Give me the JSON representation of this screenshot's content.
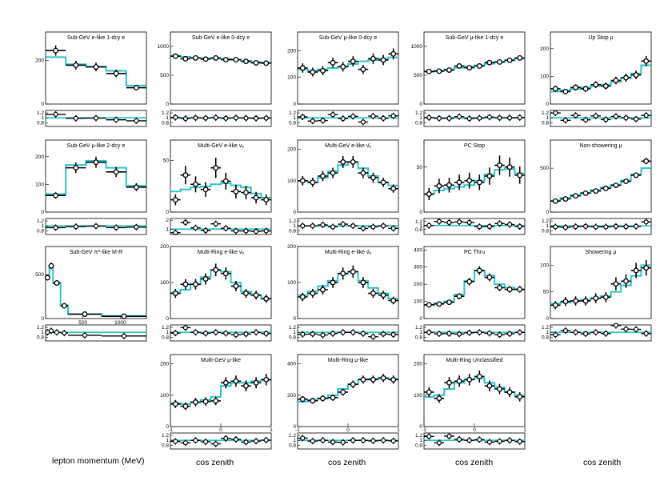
{
  "colors": {
    "mc": "#2ec4c4",
    "data": "#000000",
    "frame": "#000000"
  },
  "xlabels": [
    "lepton momentum (MeV)",
    "cos zenith",
    "cos zenith",
    "cos zenith",
    "cos zenith"
  ],
  "chart_data": [
    {
      "type": "line",
      "title": "Sub-GeV e-like 1-dcy e",
      "ylim": [
        0,
        330
      ],
      "xlim": [
        0,
        1
      ],
      "xticks": [],
      "yticks": [
        0,
        200
      ],
      "mc": [
        215,
        182,
        172,
        152,
        85
      ],
      "values": [
        245,
        178,
        170,
        140,
        75
      ],
      "ratio": {
        "ylim": [
          0.65,
          1.3
        ],
        "yticks": [
          0.8,
          1,
          1.2
        ],
        "values": [
          1.14,
          0.98,
          0.99,
          0.92,
          0.88
        ]
      }
    },
    {
      "type": "line",
      "title": "Sub-GeV e-like 0-dcy e",
      "ylim": [
        0,
        1250
      ],
      "xlim": [
        -1,
        1
      ],
      "xticks": [],
      "yticks": [
        0,
        500,
        1000
      ],
      "mc": [
        840,
        820,
        800,
        795,
        790,
        785,
        770,
        750,
        730,
        720
      ],
      "values": [
        830,
        785,
        800,
        780,
        800,
        770,
        770,
        740,
        715,
        710
      ],
      "ratio": {
        "ylim": [
          0.65,
          1.3
        ],
        "yticks": [
          0.8,
          1,
          1.2
        ],
        "values": [
          1.02,
          0.97,
          1.0,
          0.99,
          1.01,
          0.98,
          1.0,
          0.99,
          0.98,
          0.99
        ]
      }
    },
    {
      "type": "line",
      "title": "Sub-GeV μ-like 0-dcy e",
      "ylim": [
        0,
        270
      ],
      "xlim": [
        -1,
        1
      ],
      "xticks": [],
      "yticks": [
        0,
        100,
        200
      ],
      "mc": [
        130,
        125,
        130,
        135,
        140,
        150,
        160,
        165,
        170,
        175
      ],
      "values": [
        135,
        120,
        125,
        155,
        140,
        160,
        130,
        170,
        165,
        188
      ],
      "ratio": {
        "ylim": [
          0.65,
          1.3
        ],
        "yticks": [
          0.8,
          1,
          1.2
        ],
        "values": [
          1.04,
          0.87,
          0.89,
          1.13,
          0.97,
          1.06,
          0.83,
          1.07,
          0.98,
          1.08
        ]
      }
    },
    {
      "type": "line",
      "title": "Sub-GeV μ-like 1-dcy e",
      "ylim": [
        0,
        1250
      ],
      "xlim": [
        -1,
        1
      ],
      "xticks": [],
      "yticks": [
        0,
        500,
        1000
      ],
      "mc": [
        560,
        580,
        600,
        630,
        650,
        670,
        700,
        730,
        760,
        790
      ],
      "values": [
        565,
        570,
        590,
        660,
        630,
        660,
        720,
        730,
        760,
        800
      ],
      "ratio": {
        "ylim": [
          0.65,
          1.3
        ],
        "yticks": [
          0.8,
          1,
          1.2
        ],
        "values": [
          1.01,
          0.98,
          0.98,
          1.05,
          0.97,
          0.99,
          1.03,
          1.0,
          1.0,
          1.01
        ]
      }
    },
    {
      "type": "line",
      "title": "Up Stop μ",
      "ylim": [
        0,
        260
      ],
      "xlim": [
        -1,
        0
      ],
      "xticks": [],
      "yticks": [
        0,
        100,
        200
      ],
      "mc": [
        45,
        50,
        55,
        60,
        65,
        70,
        80,
        95,
        110,
        140
      ],
      "values": [
        55,
        45,
        60,
        55,
        70,
        65,
        85,
        95,
        105,
        155
      ],
      "ratio": {
        "ylim": [
          0.65,
          1.3
        ],
        "yticks": [
          0.8,
          1,
          1.2
        ],
        "values": [
          1.2,
          0.9,
          1.1,
          0.92,
          1.08,
          0.93,
          1.06,
          1.0,
          0.95,
          1.1
        ]
      }
    },
    {
      "type": "line",
      "title": "Sub-GeV μ-like 2-dcy e",
      "ylim": [
        0,
        260
      ],
      "xlim": [
        0,
        1
      ],
      "xticks": [],
      "yticks": [
        0,
        100,
        200
      ],
      "mc": [
        65,
        170,
        185,
        160,
        95
      ],
      "values": [
        60,
        160,
        180,
        145,
        90
      ],
      "ratio": {
        "ylim": [
          0.65,
          1.3
        ],
        "yticks": [
          0.8,
          1,
          1.2
        ],
        "values": [
          0.93,
          0.97,
          0.99,
          0.93,
          0.95
        ]
      }
    },
    {
      "type": "line",
      "title": "Multi-GeV e-like νₑ",
      "ylim": [
        0,
        70
      ],
      "xlim": [
        -1,
        1
      ],
      "xticks": [],
      "yticks": [
        0,
        50
      ],
      "mc": [
        20,
        22,
        24,
        25,
        27,
        28,
        26,
        24,
        18,
        14
      ],
      "values": [
        12,
        36,
        27,
        22,
        43,
        30,
        20,
        19,
        14,
        12
      ],
      "ratio": {
        "ylim": [
          0.4,
          2.2
        ],
        "yticks": [
          1,
          2
        ],
        "values": [
          0.6,
          1.75,
          1.15,
          0.85,
          1.6,
          1.1,
          0.8,
          0.8,
          0.75,
          0.8
        ]
      }
    },
    {
      "type": "line",
      "title": "Multi-GeV e-like ν̄ₑ",
      "ylim": [
        0,
        230
      ],
      "xlim": [
        -1,
        1
      ],
      "xticks": [],
      "yticks": [
        0,
        100,
        200
      ],
      "mc": [
        100,
        95,
        110,
        130,
        150,
        160,
        140,
        115,
        95,
        85
      ],
      "values": [
        100,
        95,
        115,
        125,
        160,
        160,
        125,
        110,
        95,
        75
      ],
      "ratio": {
        "ylim": [
          0.65,
          1.3
        ],
        "yticks": [
          0.8,
          1,
          1.2
        ],
        "values": [
          1.0,
          1.0,
          1.04,
          0.96,
          1.07,
          1.0,
          0.9,
          0.96,
          1.0,
          0.9
        ]
      }
    },
    {
      "type": "line",
      "title": "PC Stop",
      "ylim": [
        0,
        80
      ],
      "xlim": [
        -1,
        1
      ],
      "xticks": [],
      "yticks": [
        0,
        50
      ],
      "mc": [
        20,
        24,
        26,
        28,
        30,
        35,
        42,
        47,
        48,
        43
      ],
      "values": [
        20,
        29,
        30,
        33,
        35,
        33,
        40,
        52,
        50,
        41
      ],
      "ratio": {
        "ylim": [
          0.55,
          1.35
        ],
        "yticks": [
          0.8,
          1,
          1.2
        ],
        "values": [
          1.0,
          1.2,
          1.15,
          1.18,
          1.15,
          0.94,
          0.95,
          1.1,
          1.05,
          0.95
        ]
      }
    },
    {
      "type": "line",
      "title": "Non-showering μ",
      "ylim": [
        0,
        820
      ],
      "xlim": [
        -1,
        0
      ],
      "xticks": [],
      "yticks": [
        0,
        500
      ],
      "mc": [
        130,
        160,
        190,
        220,
        250,
        280,
        310,
        360,
        430,
        500
      ],
      "values": [
        125,
        150,
        185,
        215,
        240,
        270,
        305,
        350,
        420,
        580
      ],
      "ratio": {
        "ylim": [
          0.65,
          1.3
        ],
        "yticks": [
          0.8,
          1,
          1.2
        ],
        "values": [
          0.96,
          0.94,
          0.97,
          0.98,
          0.96,
          0.96,
          0.98,
          0.97,
          0.98,
          1.16
        ]
      }
    },
    {
      "type": "line",
      "title": "Sub-GeV π⁰-like M-R",
      "ylim": [
        0,
        820
      ],
      "xlim": [
        0,
        1350
      ],
      "xticks": [
        500,
        1000
      ],
      "yticks": [
        0,
        500
      ],
      "mc": [
        470,
        600,
        400,
        150,
        50,
        30
      ],
      "values": [
        465,
        600,
        405,
        145,
        50,
        25
      ],
      "binedges": [
        0,
        50,
        100,
        200,
        300,
        750,
        1350
      ],
      "ratio": {
        "ylim": [
          0.65,
          1.3
        ],
        "yticks": [
          0.8,
          1,
          1.2
        ],
        "values": [
          1.0,
          1.06,
          1.0,
          0.97,
          0.88,
          0.85
        ]
      }
    },
    {
      "type": "line",
      "title": "Multi-Ring e-like νₑ",
      "ylim": [
        0,
        200
      ],
      "xlim": [
        -1,
        1
      ],
      "xticks": [],
      "yticks": [
        0,
        100,
        200
      ],
      "mc": [
        72,
        80,
        95,
        115,
        135,
        130,
        100,
        75,
        65,
        55
      ],
      "values": [
        70,
        95,
        95,
        110,
        135,
        125,
        90,
        70,
        65,
        55
      ],
      "ratio": {
        "ylim": [
          0.65,
          1.3
        ],
        "yticks": [
          0.8,
          1,
          1.2
        ],
        "values": [
          0.97,
          1.19,
          1.0,
          0.96,
          1.0,
          0.96,
          0.9,
          0.93,
          1.0,
          0.95
        ]
      }
    },
    {
      "type": "line",
      "title": "Multi-Ring e-like ν̄ₑ",
      "ylim": [
        0,
        200
      ],
      "xlim": [
        -1,
        1
      ],
      "xticks": [],
      "yticks": [
        0,
        100,
        200
      ],
      "mc": [
        65,
        75,
        90,
        105,
        125,
        130,
        105,
        85,
        70,
        55
      ],
      "values": [
        60,
        70,
        80,
        100,
        125,
        130,
        100,
        70,
        65,
        50
      ],
      "ratio": {
        "ylim": [
          0.65,
          1.3
        ],
        "yticks": [
          0.8,
          1,
          1.2
        ],
        "values": [
          0.92,
          0.93,
          0.89,
          0.95,
          1.0,
          1.0,
          0.95,
          0.82,
          0.93,
          0.91
        ]
      }
    },
    {
      "type": "line",
      "title": "PC Thru",
      "ylim": [
        0,
        420
      ],
      "xlim": [
        -1,
        1
      ],
      "xticks": [],
      "yticks": [
        0,
        100,
        200,
        300,
        400
      ],
      "mc": [
        80,
        90,
        100,
        140,
        220,
        280,
        250,
        200,
        180,
        170
      ],
      "values": [
        80,
        85,
        95,
        130,
        215,
        280,
        240,
        180,
        170,
        170
      ],
      "ratio": {
        "ylim": [
          0.65,
          1.3
        ],
        "yticks": [
          0.8,
          1,
          1.2
        ],
        "values": [
          1.0,
          0.94,
          0.95,
          0.93,
          0.98,
          1.0,
          0.96,
          0.9,
          0.94,
          1.0
        ]
      }
    },
    {
      "type": "line",
      "title": "Showering μ",
      "ylim": [
        0,
        135
      ],
      "xlim": [
        -1,
        0
      ],
      "xticks": [],
      "yticks": [
        0,
        50,
        100
      ],
      "mc": [
        28,
        30,
        33,
        35,
        38,
        42,
        50,
        62,
        80,
        100
      ],
      "values": [
        25,
        32,
        33,
        33,
        38,
        40,
        65,
        70,
        90,
        95
      ],
      "ratio": {
        "ylim": [
          0.65,
          1.3
        ],
        "yticks": [
          0.8,
          1,
          1.2
        ],
        "values": [
          0.9,
          1.07,
          1.0,
          0.94,
          1.0,
          0.95,
          1.3,
          1.13,
          1.12,
          0.95
        ]
      }
    },
    {
      "type": "line",
      "title": "Multi-GeV μ-like",
      "ylim": [
        0,
        230
      ],
      "xlim": [
        -1,
        1
      ],
      "xticks": [
        -1,
        0,
        1
      ],
      "yticks": [
        0,
        100,
        200
      ],
      "mc": [
        75,
        72,
        78,
        85,
        95,
        130,
        140,
        140,
        145,
        148
      ],
      "values": [
        72,
        65,
        78,
        80,
        82,
        140,
        145,
        130,
        140,
        150
      ],
      "ratio": {
        "ylim": [
          0.65,
          1.3
        ],
        "yticks": [
          0.8,
          1,
          1.2
        ],
        "values": [
          0.96,
          0.9,
          1.0,
          0.94,
          0.86,
          1.08,
          1.04,
          0.93,
          0.97,
          1.01
        ]
      }
    },
    {
      "type": "line",
      "title": "Multi-Ring μ-like",
      "ylim": [
        0,
        460
      ],
      "xlim": [
        -1,
        1
      ],
      "xticks": [
        -1,
        0,
        1
      ],
      "yticks": [
        0,
        200,
        400
      ],
      "mc": [
        160,
        170,
        180,
        200,
        240,
        270,
        300,
        305,
        310,
        305
      ],
      "values": [
        175,
        165,
        180,
        185,
        220,
        270,
        300,
        300,
        310,
        300
      ],
      "ratio": {
        "ylim": [
          0.65,
          1.3
        ],
        "yticks": [
          0.8,
          1,
          1.2
        ],
        "values": [
          1.09,
          0.97,
          1.0,
          0.93,
          0.92,
          1.0,
          1.0,
          0.98,
          1.0,
          0.98
        ]
      }
    },
    {
      "type": "line",
      "title": "Multi-Ring Unclassified",
      "ylim": [
        0,
        230
      ],
      "xlim": [
        -1,
        1
      ],
      "xticks": [
        -1,
        0,
        1
      ],
      "yticks": [
        0,
        100,
        200
      ],
      "mc": [
        95,
        100,
        120,
        140,
        150,
        155,
        140,
        125,
        110,
        100
      ],
      "values": [
        110,
        90,
        140,
        145,
        150,
        160,
        130,
        120,
        110,
        95
      ],
      "ratio": {
        "ylim": [
          0.65,
          1.3
        ],
        "yticks": [
          0.8,
          1,
          1.2
        ],
        "values": [
          1.16,
          0.9,
          1.17,
          1.04,
          1.0,
          1.03,
          0.93,
          0.96,
          1.0,
          0.95
        ]
      }
    }
  ]
}
